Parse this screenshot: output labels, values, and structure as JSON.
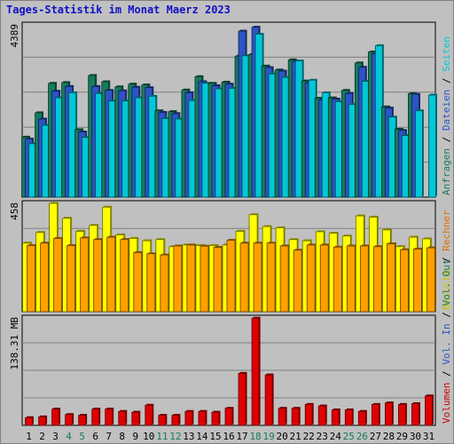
{
  "title": "Tages-Statistik im Monat Maerz 2023",
  "chart_data": [
    {
      "type": "bar",
      "name": "top",
      "max_label": "4389",
      "ylim": [
        0,
        4389
      ],
      "legend": [
        {
          "text": "Anfragen",
          "color": "#157c5c"
        },
        {
          "text": "Dateien",
          "color": "#2b54c6"
        },
        {
          "text": "Seiten",
          "color": "#00c8d8"
        }
      ],
      "series": [
        {
          "name": "Anfragen",
          "color": "#157c5c",
          "values": [
            1530,
            2150,
            2900,
            2920,
            1720,
            3100,
            2940,
            2810,
            2880,
            2860,
            2200,
            2180,
            2730,
            3070,
            2900,
            2930,
            3590,
            3630,
            3340,
            3240,
            3500,
            2960,
            2520,
            2530,
            2720,
            3420,
            3700,
            2300,
            1730,
            2640,
            0
          ]
        },
        {
          "name": "Dateien",
          "color": "#2b54c6",
          "values": [
            1480,
            1990,
            2700,
            2820,
            1660,
            2820,
            2720,
            2710,
            2800,
            2790,
            2160,
            2130,
            2660,
            2940,
            2840,
            2880,
            4230,
            4330,
            3300,
            3210,
            3460,
            2910,
            2480,
            2500,
            2640,
            3310,
            3650,
            2270,
            1700,
            2620,
            0
          ]
        },
        {
          "name": "Seiten",
          "color": "#00c8d8",
          "values": [
            1360,
            1830,
            2530,
            2660,
            1520,
            2640,
            2450,
            2450,
            2530,
            2570,
            2000,
            1990,
            2460,
            2900,
            2760,
            2770,
            3600,
            4150,
            3140,
            3050,
            3470,
            2980,
            2660,
            2430,
            2360,
            2950,
            3860,
            2040,
            1570,
            2200,
            2600
          ]
        }
      ]
    },
    {
      "type": "bar",
      "name": "middle",
      "max_label": "458",
      "ylim": [
        0,
        458
      ],
      "legend": [
        {
          "text": "Besuche",
          "color": "#c8c800"
        },
        {
          "text": "Rechner",
          "color": "#e07000"
        }
      ],
      "series": [
        {
          "name": "Besuche",
          "color": "#ffff00",
          "values": [
            290,
            335,
            458,
            395,
            340,
            365,
            442,
            325,
            310,
            300,
            305,
            275,
            282,
            280,
            280,
            282,
            340,
            410,
            360,
            355,
            305,
            300,
            338,
            332,
            320,
            405,
            400,
            346,
            275,
            315,
            308
          ]
        },
        {
          "name": "Rechner",
          "color": "#ff9f00",
          "values": [
            280,
            290,
            310,
            280,
            312,
            305,
            315,
            305,
            250,
            245,
            240,
            278,
            282,
            277,
            272,
            302,
            290,
            290,
            290,
            278,
            260,
            282,
            282,
            273,
            278,
            278,
            275,
            287,
            262,
            265,
            270
          ]
        }
      ]
    },
    {
      "type": "bar",
      "name": "bottom",
      "max_label": "138.31 MB",
      "ylim": [
        0,
        138.31
      ],
      "legend": [
        {
          "text": "Volumen",
          "color": "#cc0000"
        },
        {
          "text": "Vol. In",
          "color": "#2b54c6"
        },
        {
          "text": "Vol. Out",
          "color": "#157c5c"
        }
      ],
      "series": [
        {
          "name": "Volumen",
          "color": "#e00000",
          "values": [
            10,
            11,
            21,
            14,
            13,
            21,
            21,
            18,
            17,
            26,
            13,
            13,
            18,
            18,
            17,
            22,
            67,
            138,
            65,
            22,
            22,
            27,
            25,
            20,
            20,
            18,
            27,
            29,
            27,
            28,
            38
          ]
        }
      ]
    }
  ],
  "x_labels": [
    {
      "text": "1",
      "weekend": false
    },
    {
      "text": "2",
      "weekend": false
    },
    {
      "text": "3",
      "weekend": false
    },
    {
      "text": "4",
      "weekend": true
    },
    {
      "text": "5",
      "weekend": true
    },
    {
      "text": "6",
      "weekend": false
    },
    {
      "text": "7",
      "weekend": false
    },
    {
      "text": "8",
      "weekend": false
    },
    {
      "text": "9",
      "weekend": false
    },
    {
      "text": "10",
      "weekend": false
    },
    {
      "text": "11",
      "weekend": true
    },
    {
      "text": "12",
      "weekend": true
    },
    {
      "text": "13",
      "weekend": false
    },
    {
      "text": "14",
      "weekend": false
    },
    {
      "text": "15",
      "weekend": false
    },
    {
      "text": "16",
      "weekend": false
    },
    {
      "text": "17",
      "weekend": false
    },
    {
      "text": "18",
      "weekend": true
    },
    {
      "text": "19",
      "weekend": true
    },
    {
      "text": "20",
      "weekend": false
    },
    {
      "text": "21",
      "weekend": false
    },
    {
      "text": "22",
      "weekend": false
    },
    {
      "text": "23",
      "weekend": false
    },
    {
      "text": "24",
      "weekend": false
    },
    {
      "text": "25",
      "weekend": true
    },
    {
      "text": "26",
      "weekend": true
    },
    {
      "text": "27",
      "weekend": false
    },
    {
      "text": "28",
      "weekend": false
    },
    {
      "text": "29",
      "weekend": false
    },
    {
      "text": "30",
      "weekend": false
    },
    {
      "text": "31",
      "weekend": false
    }
  ],
  "weekday_color": "#000000",
  "weekend_color": "#157c5c"
}
